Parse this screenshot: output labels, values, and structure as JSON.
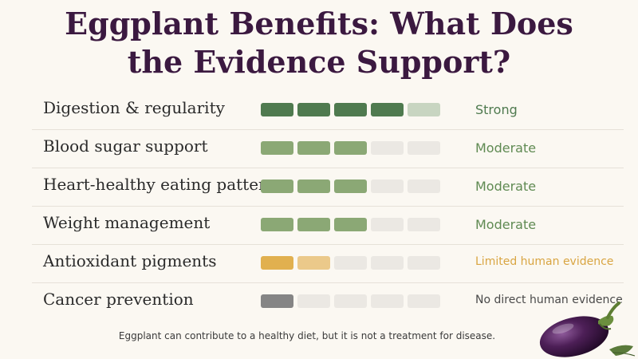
{
  "title": {
    "line1": "Eggplant Benefits: What Does",
    "line2": "the Evidence Support?"
  },
  "scale_max": 5,
  "colors": {
    "strong": "#4f7a4f",
    "strong_light": "#c8d5c1",
    "moderate": "#8ba875",
    "limited": "#e1b04f",
    "limited_light": "#ebc98a",
    "none": "#858585",
    "empty": "#ebe8e3",
    "title": "#3b1940"
  },
  "rows": [
    {
      "label": "Digestion & regularity",
      "status": "Strong",
      "filled": 4,
      "partial": 1,
      "fill_color": "#4f7a4f",
      "partial_color": "#c8d5c1",
      "status_color": "#4f7a4f"
    },
    {
      "label": "Blood sugar support",
      "status": "Moderate",
      "filled": 3,
      "partial": 0,
      "fill_color": "#8ba875",
      "partial_color": "",
      "status_color": "#5f8a52"
    },
    {
      "label": "Heart-healthy eating pattern",
      "status": "Moderate",
      "filled": 3,
      "partial": 0,
      "fill_color": "#8ba875",
      "partial_color": "",
      "status_color": "#5f8a52"
    },
    {
      "label": "Weight management",
      "status": "Moderate",
      "filled": 3,
      "partial": 0,
      "fill_color": "#8ba875",
      "partial_color": "",
      "status_color": "#5f8a52"
    },
    {
      "label": "Antioxidant pigments",
      "status": "Limited human evidence",
      "filled": 1,
      "partial": 1,
      "fill_color": "#e1b04f",
      "partial_color": "#ebc98a",
      "status_color": "#d9a542"
    },
    {
      "label": "Cancer prevention",
      "status": "No direct human evidence",
      "filled": 1,
      "partial": 0,
      "fill_color": "#858585",
      "partial_color": "",
      "status_color": "#4a4a4a"
    }
  ],
  "footnote": "Eggplant can contribute to a healthy diet, but it is not a treatment for disease.",
  "illustration": "eggplant-icon"
}
